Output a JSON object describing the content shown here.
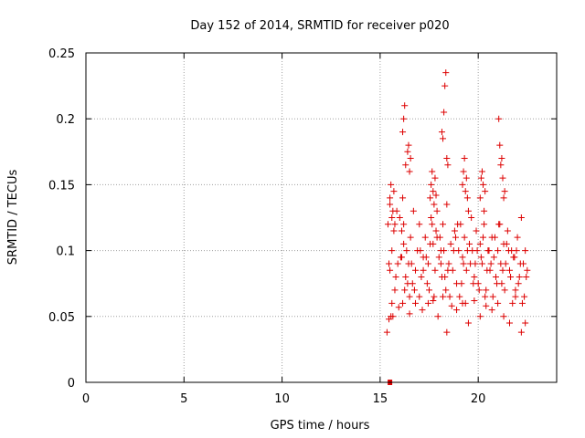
{
  "chart_data": {
    "type": "scatter",
    "title": "Day 152 of 2014, SRMTID for receiver p020",
    "xlabel": "GPS time / hours",
    "ylabel": "SRMTID / TECUs",
    "xlim": [
      0,
      24
    ],
    "ylim": [
      0,
      0.25
    ],
    "xticks": [
      0,
      5,
      10,
      15,
      20
    ],
    "xtick_labels": [
      "0",
      "5",
      "10",
      "15",
      "20"
    ],
    "yticks": [
      0,
      0.05,
      0.1,
      0.15,
      0.2,
      0.25
    ],
    "ytick_labels": [
      "0",
      "0.05",
      "0.1",
      "0.15",
      "0.2",
      "0.25"
    ],
    "grid": true,
    "marker": "+",
    "series": [
      {
        "name": "p020",
        "color": "#dd0000",
        "x": [
          15.35,
          15.4,
          15.45,
          15.5,
          15.55,
          15.6,
          15.7,
          15.8,
          15.85,
          15.9,
          16.0,
          16.05,
          16.1,
          16.15,
          16.2,
          16.25,
          16.3,
          16.4,
          16.5,
          16.55,
          16.6,
          16.7,
          16.8,
          16.9,
          17.0,
          17.1,
          17.2,
          17.3,
          17.4,
          17.45,
          17.5,
          17.6,
          17.7,
          17.8,
          17.85,
          17.9,
          18.0,
          18.05,
          18.1,
          18.2,
          18.3,
          18.4,
          18.5,
          18.6,
          18.7,
          18.8,
          18.9,
          19.0,
          19.1,
          19.2,
          19.3,
          19.4,
          19.5,
          19.6,
          19.7,
          19.8,
          19.9,
          20.0,
          20.1,
          20.2,
          20.3,
          20.4,
          20.5,
          20.6,
          20.7,
          20.8,
          20.9,
          21.0,
          21.1,
          21.2,
          21.3,
          21.4,
          21.5,
          21.6,
          21.7,
          21.8,
          21.9,
          22.0,
          22.1,
          22.2,
          22.3,
          22.4,
          22.5,
          15.5,
          15.6,
          15.75,
          16.1,
          16.2,
          16.35,
          16.45,
          16.65,
          16.8,
          17.05,
          17.2,
          17.35,
          17.55,
          17.65,
          17.75,
          17.9,
          18.1,
          18.15,
          18.25,
          18.35,
          18.45,
          18.55,
          18.75,
          18.85,
          18.95,
          19.05,
          19.15,
          19.25,
          19.35,
          19.45,
          19.55,
          19.65,
          19.75,
          19.85,
          19.95,
          20.05,
          20.15,
          20.25,
          20.35,
          20.45,
          20.55,
          20.65,
          20.75,
          20.85,
          20.95,
          21.05,
          21.15,
          21.25,
          21.35,
          21.45,
          21.55,
          21.65,
          21.75,
          21.85,
          21.95,
          22.05,
          22.15,
          22.25,
          22.35,
          22.45,
          15.45,
          15.65,
          15.95,
          16.15,
          16.5,
          16.75,
          17.0,
          17.15,
          17.45,
          17.7,
          17.95,
          18.2,
          18.4,
          18.65,
          18.9,
          19.2,
          19.5,
          19.8,
          20.1,
          20.4,
          20.7,
          21.0,
          21.3,
          21.6,
          21.9,
          22.2,
          22.4,
          16.15,
          16.2,
          16.25,
          16.3,
          16.4,
          16.45,
          16.5,
          16.55,
          17.55,
          17.6,
          17.65,
          17.7,
          17.75,
          17.8,
          17.85,
          18.15,
          18.2,
          18.25,
          18.3,
          18.35,
          18.4,
          18.45,
          19.2,
          19.25,
          19.3,
          19.35,
          19.4,
          19.45,
          20.1,
          20.15,
          20.2,
          20.25,
          20.3,
          20.35,
          21.05,
          21.1,
          21.15,
          21.2,
          21.25,
          21.3,
          21.35,
          15.5,
          15.55,
          15.6,
          15.65,
          15.7,
          15.75
        ],
        "y": [
          0.038,
          0.12,
          0.09,
          0.135,
          0.05,
          0.1,
          0.115,
          0.08,
          0.13,
          0.09,
          0.125,
          0.095,
          0.115,
          0.14,
          0.105,
          0.07,
          0.08,
          0.075,
          0.065,
          0.11,
          0.09,
          0.13,
          0.085,
          0.1,
          0.12,
          0.08,
          0.095,
          0.11,
          0.075,
          0.09,
          0.07,
          0.125,
          0.105,
          0.085,
          0.115,
          0.13,
          0.095,
          0.11,
          0.1,
          0.12,
          0.08,
          0.135,
          0.09,
          0.105,
          0.085,
          0.115,
          0.075,
          0.1,
          0.12,
          0.095,
          0.11,
          0.085,
          0.13,
          0.09,
          0.1,
          0.08,
          0.115,
          0.075,
          0.105,
          0.09,
          0.12,
          0.07,
          0.1,
          0.085,
          0.11,
          0.095,
          0.08,
          0.1,
          0.12,
          0.075,
          0.105,
          0.09,
          0.115,
          0.085,
          0.1,
          0.095,
          0.07,
          0.11,
          0.08,
          0.125,
          0.09,
          0.1,
          0.085,
          0.085,
          0.06,
          0.07,
          0.095,
          0.12,
          0.1,
          0.09,
          0.075,
          0.06,
          0.1,
          0.085,
          0.095,
          0.105,
          0.12,
          0.065,
          0.11,
          0.09,
          0.08,
          0.1,
          0.07,
          0.085,
          0.065,
          0.1,
          0.11,
          0.12,
          0.065,
          0.075,
          0.09,
          0.06,
          0.1,
          0.105,
          0.125,
          0.075,
          0.09,
          0.1,
          0.07,
          0.095,
          0.11,
          0.065,
          0.085,
          0.1,
          0.09,
          0.065,
          0.11,
          0.075,
          0.12,
          0.09,
          0.085,
          0.07,
          0.105,
          0.1,
          0.08,
          0.06,
          0.095,
          0.1,
          0.075,
          0.09,
          0.06,
          0.065,
          0.08,
          0.048,
          0.05,
          0.057,
          0.06,
          0.052,
          0.07,
          0.065,
          0.055,
          0.06,
          0.062,
          0.05,
          0.065,
          0.038,
          0.058,
          0.055,
          0.06,
          0.045,
          0.062,
          0.05,
          0.058,
          0.055,
          0.06,
          0.05,
          0.045,
          0.065,
          0.038,
          0.045,
          0.19,
          0.2,
          0.21,
          0.165,
          0.175,
          0.18,
          0.16,
          0.17,
          0.14,
          0.15,
          0.16,
          0.145,
          0.135,
          0.155,
          0.142,
          0.19,
          0.185,
          0.205,
          0.225,
          0.235,
          0.17,
          0.165,
          0.15,
          0.16,
          0.17,
          0.145,
          0.155,
          0.14,
          0.14,
          0.155,
          0.16,
          0.15,
          0.13,
          0.145,
          0.2,
          0.18,
          0.165,
          0.17,
          0.155,
          0.14,
          0.145,
          0.14,
          0.15,
          0.125,
          0.13,
          0.145,
          0.12
        ]
      }
    ],
    "annotation_marker": {
      "x": 15.5,
      "y": 0,
      "shape": "square"
    }
  }
}
